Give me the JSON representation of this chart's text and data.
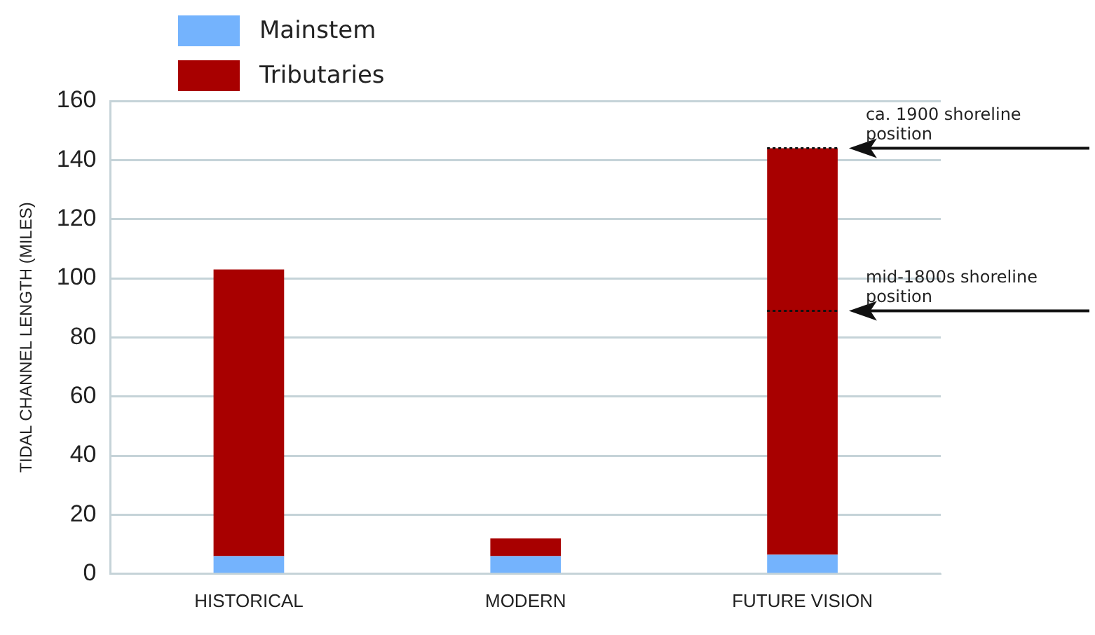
{
  "chart_data": {
    "type": "bar",
    "stacked": true,
    "ylabel": "TIDAL CHANNEL LENGTH (MILES)",
    "categories": [
      "HISTORICAL",
      "MODERN",
      "FUTURE VISION"
    ],
    "series": [
      {
        "name": "Mainstem",
        "color": "#74b3fd",
        "values": [
          6,
          6,
          6.5
        ]
      },
      {
        "name": "Tributaries",
        "color": "#a80000",
        "values": [
          97,
          6,
          137.5
        ]
      }
    ],
    "ylim": [
      0,
      160
    ],
    "yticks": [
      0,
      20,
      40,
      60,
      80,
      100,
      120,
      140,
      160
    ],
    "grid": "y",
    "legend": "top left",
    "ref_lines": [
      {
        "axis": "y",
        "value": 144,
        "label": "ca. 1900 shoreline position",
        "color": "#111111",
        "line_style": "dotted"
      },
      {
        "axis": "y",
        "value": 89,
        "label": "mid-1800s shoreline position",
        "color": "#111111",
        "line_style": "dotted"
      }
    ]
  }
}
